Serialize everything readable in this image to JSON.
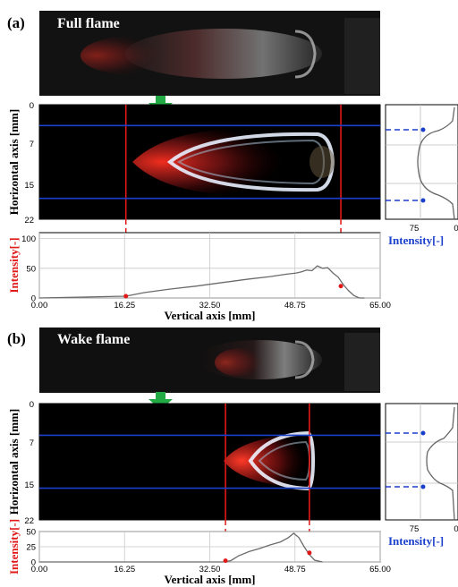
{
  "panels": [
    {
      "label": "(a)",
      "photo_title": "Full flame",
      "image_axes": {
        "ylabel": "Horizontal axis [mm]",
        "yticks": [
          "0",
          "7",
          "15",
          "22"
        ],
        "ylim": [
          0,
          22
        ]
      },
      "profile_axes": {
        "xlabel": "Intensity[-]",
        "xticks": [
          "75",
          "0"
        ]
      },
      "chart_data": {
        "type": "line",
        "title": "",
        "xlabel": "Vertical axis [mm]",
        "ylabel": "Intensity[-]",
        "xlim": [
          0,
          65
        ],
        "ylim": [
          0,
          110
        ],
        "xticks": [
          "0.00",
          "16.25",
          "32.50",
          "48.75",
          "65.00"
        ],
        "yticks": [
          "0",
          "50",
          "100"
        ],
        "grid": true,
        "series": [
          {
            "x": [
              0,
              16.5,
              20,
              25,
              30,
              35,
              40,
              44,
              47,
              49,
              50,
              51,
              52,
              53,
              54,
              55,
              56,
              57,
              58,
              59,
              60,
              61,
              62
            ],
            "y": [
              0,
              3,
              9,
              15,
              20,
              26,
              32,
              36,
              40,
              42,
              44,
              47,
              46,
              54,
              50,
              51,
              42,
              35,
              22,
              12,
              4,
              0,
              0
            ]
          }
        ],
        "markers": [
          {
            "x": 16.5,
            "y": 3
          },
          {
            "x": 57.5,
            "y": 20
          }
        ],
        "vertical_lines_x": [
          16.5,
          57.5
        ],
        "horizontal_lines_mm": [
          4,
          18
        ]
      }
    },
    {
      "label": "(b)",
      "photo_title": "Wake flame",
      "image_axes": {
        "ylabel": "Horizontal axis [mm]",
        "yticks": [
          "0",
          "7",
          "15",
          "22"
        ],
        "ylim": [
          0,
          22
        ]
      },
      "profile_axes": {
        "xlabel": "Intensity[-]",
        "xticks": [
          "75",
          "0"
        ]
      },
      "chart_data": {
        "type": "line",
        "title": "",
        "xlabel": "Vertical axis [mm]",
        "ylabel": "Intensity[-]",
        "xlim": [
          0,
          65
        ],
        "ylim": [
          0,
          50
        ],
        "xticks": [
          "0.00",
          "16.25",
          "32.50",
          "48.75",
          "65.00"
        ],
        "yticks": [
          "0",
          "25",
          "50"
        ],
        "grid": true,
        "series": [
          {
            "x": [
              0,
              35,
              36.5,
              38,
              40,
              42,
              44,
              46,
              47.5,
              48.5,
              49.5,
              50.5,
              51.5,
              52.5,
              54
            ],
            "y": [
              0,
              0,
              2,
              10,
              17,
              22,
              28,
              33,
              40,
              47,
              40,
              25,
              12,
              3,
              0
            ]
          }
        ],
        "markers": [
          {
            "x": 35.5,
            "y": 2
          },
          {
            "x": 51.5,
            "y": 15
          }
        ],
        "vertical_lines_x": [
          35.5,
          51.5
        ],
        "horizontal_lines_mm": [
          6,
          16
        ]
      }
    }
  ]
}
